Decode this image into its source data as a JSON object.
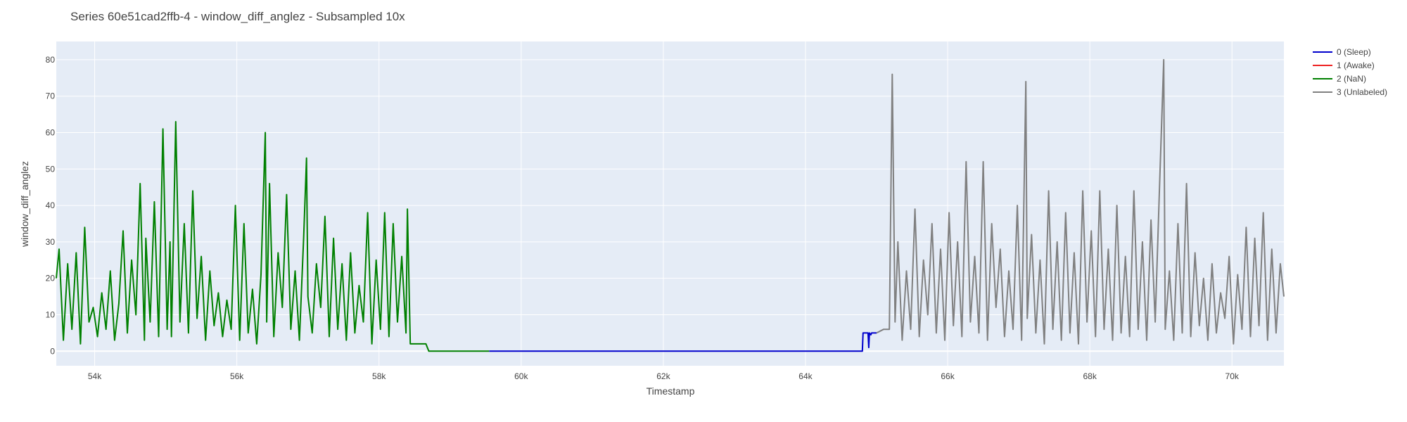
{
  "chart_data": {
    "type": "line",
    "title": "Series 60e51cad2ffb-4 - window_diff_anglez - Subsampled 10x",
    "xlabel": "Timestamp",
    "ylabel": "window_diff_anglez",
    "xlim": [
      53460,
      70730
    ],
    "ylim": [
      -4,
      85
    ],
    "grid": true,
    "legend_position": "top-right",
    "x_ticks": [
      {
        "value": 54000,
        "label": "54k"
      },
      {
        "value": 56000,
        "label": "56k"
      },
      {
        "value": 58000,
        "label": "58k"
      },
      {
        "value": 60000,
        "label": "60k"
      },
      {
        "value": 62000,
        "label": "62k"
      },
      {
        "value": 64000,
        "label": "64k"
      },
      {
        "value": 66000,
        "label": "66k"
      },
      {
        "value": 68000,
        "label": "68k"
      },
      {
        "value": 70000,
        "label": "70k"
      }
    ],
    "y_ticks": [
      {
        "value": 0,
        "label": "0"
      },
      {
        "value": 10,
        "label": "10"
      },
      {
        "value": 20,
        "label": "20"
      },
      {
        "value": 30,
        "label": "30"
      },
      {
        "value": 40,
        "label": "40"
      },
      {
        "value": 50,
        "label": "50"
      },
      {
        "value": 60,
        "label": "60"
      },
      {
        "value": 70,
        "label": "70"
      },
      {
        "value": 80,
        "label": "80"
      }
    ],
    "series": [
      {
        "name": "0 (Sleep)",
        "color": "#0000cc",
        "x": [
          59550,
          64800,
          64810,
          64880,
          64890,
          64900,
          64920,
          64930,
          64960,
          65000
        ],
        "y": [
          0,
          0,
          5,
          5,
          1,
          5,
          4.5,
          5,
          5,
          5
        ]
      },
      {
        "name": "1 (Awake)",
        "color": "#ee2222",
        "x": [],
        "y": []
      },
      {
        "name": "2 (NaN)",
        "color": "#008000",
        "x": [
          53460,
          53500,
          53560,
          53620,
          53680,
          53740,
          53800,
          53860,
          53920,
          53980,
          54040,
          54100,
          54160,
          54220,
          54280,
          54340,
          54400,
          54460,
          54520,
          54580,
          54640,
          54700,
          54720,
          54780,
          54840,
          54900,
          54960,
          55020,
          55060,
          55080,
          55140,
          55200,
          55260,
          55320,
          55380,
          55440,
          55500,
          55560,
          55620,
          55680,
          55740,
          55800,
          55860,
          55920,
          55980,
          56040,
          56100,
          56160,
          56220,
          56280,
          56340,
          56400,
          56420,
          56460,
          56520,
          56580,
          56640,
          56700,
          56760,
          56820,
          56880,
          56940,
          56980,
          57000,
          57060,
          57120,
          57180,
          57240,
          57300,
          57360,
          57420,
          57480,
          57540,
          57600,
          57660,
          57720,
          57780,
          57840,
          57900,
          57960,
          58020,
          58080,
          58140,
          58200,
          58260,
          58320,
          58380,
          58400,
          58440,
          58500,
          58560,
          58620,
          58660,
          58700,
          59000,
          59550
        ],
        "y": [
          20,
          28,
          3,
          24,
          6,
          27,
          2,
          34,
          8,
          12,
          4,
          16,
          6,
          22,
          3,
          13,
          33,
          5,
          25,
          10,
          46,
          3,
          31,
          8,
          41,
          4,
          61,
          6,
          30,
          4,
          63,
          8,
          35,
          5,
          44,
          9,
          26,
          3,
          22,
          7,
          16,
          4,
          14,
          6,
          40,
          3,
          35,
          5,
          17,
          2,
          21,
          60,
          8,
          46,
          4,
          27,
          12,
          43,
          6,
          22,
          3,
          31,
          53,
          15,
          5,
          24,
          12,
          37,
          4,
          31,
          6,
          24,
          3,
          27,
          5,
          18,
          8,
          38,
          2,
          25,
          6,
          38,
          4,
          35,
          8,
          26,
          5,
          39,
          2,
          2,
          2,
          2,
          2,
          0,
          0,
          0
        ]
      },
      {
        "name": "3 (Unlabeled)",
        "color": "#808080",
        "x": [
          65000,
          65100,
          65180,
          65220,
          65260,
          65300,
          65360,
          65420,
          65480,
          65540,
          65600,
          65660,
          65720,
          65780,
          65840,
          65900,
          65960,
          66020,
          66080,
          66140,
          66200,
          66260,
          66320,
          66380,
          66440,
          66500,
          66560,
          66620,
          66680,
          66740,
          66800,
          66860,
          66920,
          66980,
          67040,
          67100,
          67120,
          67180,
          67240,
          67300,
          67360,
          67420,
          67480,
          67540,
          67600,
          67660,
          67720,
          67780,
          67840,
          67900,
          67960,
          68020,
          68080,
          68140,
          68200,
          68260,
          68320,
          68380,
          68440,
          68500,
          68560,
          68620,
          68680,
          68740,
          68800,
          68860,
          68920,
          68980,
          69040,
          69060,
          69120,
          69180,
          69240,
          69300,
          69360,
          69420,
          69480,
          69540,
          69600,
          69660,
          69720,
          69780,
          69840,
          69900,
          69960,
          70020,
          70080,
          70140,
          70200,
          70260,
          70320,
          70380,
          70440,
          70500,
          70560,
          70620,
          70680,
          70730
        ],
        "y": [
          5,
          6,
          6,
          76,
          8,
          30,
          3,
          22,
          6,
          39,
          4,
          25,
          10,
          35,
          5,
          28,
          3,
          38,
          7,
          30,
          4,
          52,
          8,
          26,
          5,
          52,
          3,
          35,
          12,
          28,
          4,
          22,
          6,
          40,
          3,
          74,
          9,
          32,
          5,
          25,
          2,
          44,
          6,
          30,
          3,
          38,
          5,
          27,
          2,
          44,
          8,
          33,
          4,
          44,
          6,
          28,
          3,
          40,
          5,
          26,
          4,
          44,
          6,
          30,
          3,
          36,
          8,
          45,
          80,
          6,
          22,
          3,
          35,
          5,
          46,
          4,
          27,
          7,
          20,
          3,
          24,
          5,
          16,
          9,
          26,
          2,
          21,
          6,
          34,
          4,
          31,
          7,
          38,
          3,
          28,
          5,
          24,
          15
        ]
      }
    ]
  }
}
